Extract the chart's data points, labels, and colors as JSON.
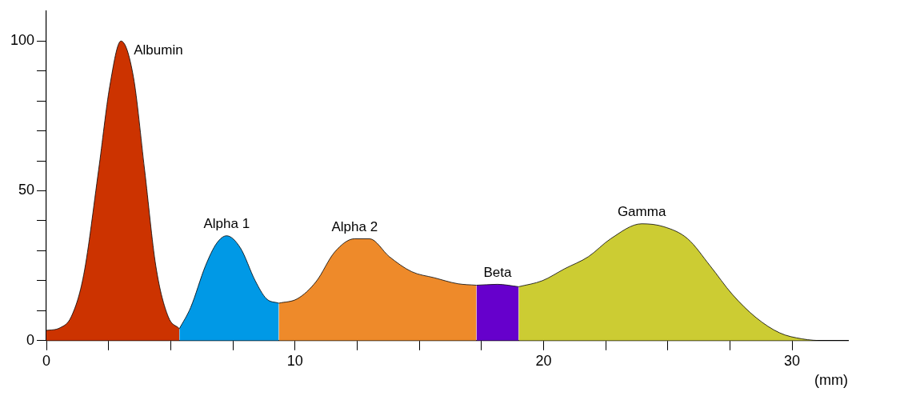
{
  "chart_data": {
    "type": "area",
    "xlabel": "(mm)",
    "xlim": [
      0,
      32.25
    ],
    "ylim": [
      0,
      110
    ],
    "xticks": [
      0,
      {
        "value": 2.5,
        "label": null
      },
      {
        "value": 5,
        "label": null
      },
      {
        "value": 7.5,
        "label": null
      },
      10,
      {
        "value": 12.5,
        "label": null
      },
      {
        "value": 15,
        "label": null
      },
      {
        "value": 17.5,
        "label": null
      },
      20,
      {
        "value": 22.5,
        "label": null
      },
      {
        "value": 25,
        "label": null
      },
      {
        "value": 27.5,
        "label": null
      },
      30
    ],
    "yticks": [
      0,
      {
        "value": 10,
        "label": null
      },
      {
        "value": 20,
        "label": null
      },
      {
        "value": 30,
        "label": null
      },
      {
        "value": 40,
        "label": null
      },
      50,
      {
        "value": 60,
        "label": null
      },
      {
        "value": 70,
        "label": null
      },
      {
        "value": 80,
        "label": null
      },
      {
        "value": 90,
        "label": null
      },
      100
    ],
    "grid": false,
    "legend": false,
    "marker": "none",
    "series": [
      {
        "name": "Albumin",
        "color": "#cc3300",
        "x": [
          0,
          0.55,
          1.0,
          1.5,
          2.1,
          2.55,
          3.0,
          3.5,
          3.95,
          4.4,
          4.9,
          5.35
        ],
        "values": [
          3.4,
          4.3,
          8,
          22,
          57,
          85,
          100,
          88,
          57,
          25,
          8,
          4
        ]
      },
      {
        "name": "Alpha 1",
        "color": "#0099e6",
        "x": [
          5.35,
          5.8,
          6.4,
          6.85,
          7.25,
          7.8,
          8.4,
          8.85,
          9.35
        ],
        "values": [
          4,
          11,
          25,
          32.5,
          35,
          31,
          20,
          14,
          12.5
        ]
      },
      {
        "name": "Alpha 2",
        "color": "#ee8a2a",
        "x": [
          9.35,
          10.1,
          10.85,
          11.6,
          12.4,
          13.0,
          13.8,
          14.7,
          15.6,
          16.55,
          17.3
        ],
        "values": [
          12.5,
          14,
          19.7,
          29.6,
          34,
          34,
          28,
          23,
          21,
          19,
          18.5
        ]
      },
      {
        "name": "Beta",
        "color": "#6600cc",
        "x": [
          17.3,
          18.15,
          19.0
        ],
        "values": [
          18.5,
          18.8,
          18
        ]
      },
      {
        "name": "Gamma",
        "color": "#cccc33",
        "x": [
          19.0,
          19.95,
          20.85,
          21.8,
          22.7,
          23.95,
          24.85,
          25.8,
          26.7,
          27.6,
          28.55,
          29.5,
          30.4,
          31.3,
          32.0
        ],
        "values": [
          18,
          20,
          24,
          28,
          34,
          39,
          38,
          34,
          25,
          15.4,
          7.7,
          2.6,
          0.6,
          0,
          0
        ]
      }
    ]
  }
}
